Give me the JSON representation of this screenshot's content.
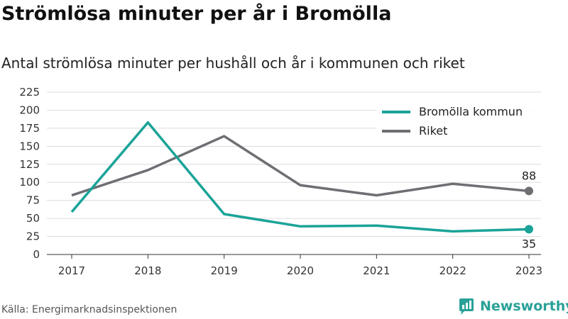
{
  "title": "Strömlösa minuter per år i Bromölla",
  "subtitle": "Antal strömlösa minuter per hushåll och år i kommunen och riket",
  "source": "Källa: Energimarknadsinspektionen",
  "brand": {
    "name": "Newsworthy",
    "icon": "newsworthy-logo-icon",
    "color": "#2aa198"
  },
  "chart_data": {
    "type": "line",
    "x": [
      "2017",
      "2018",
      "2019",
      "2020",
      "2021",
      "2022",
      "2023"
    ],
    "yticks": [
      "0",
      "25",
      "50",
      "75",
      "100",
      "125",
      "150",
      "175",
      "200",
      "225"
    ],
    "ylim": [
      0,
      225
    ],
    "grid": true,
    "legend_position": "top-right",
    "series": [
      {
        "name": "Bromölla kommun",
        "color": "#1ba398",
        "values": [
          59,
          183,
          56,
          39,
          40,
          32,
          35
        ],
        "end_label": "35"
      },
      {
        "name": "Riket",
        "color": "#6e6e73",
        "values": [
          82,
          117,
          164,
          96,
          82,
          98,
          88
        ],
        "end_label": "88"
      }
    ]
  }
}
